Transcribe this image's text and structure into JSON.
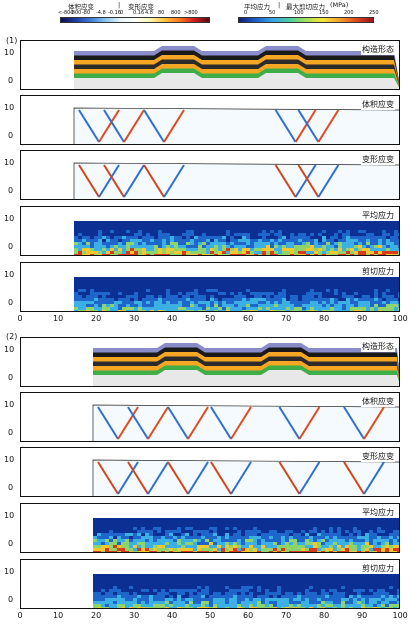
{
  "legend": {
    "left_title": "体积应变",
    "separator": "|",
    "mid_title": "变形应变",
    "right_title1": "平均应力",
    "right_sep": "|",
    "right_title2": "最大剪切应力",
    "unit": "(MPa)",
    "left_scale": [
      "<-800",
      "-800",
      "-80",
      "-4.8",
      "-0.16",
      "0",
      "0.16",
      "4.8",
      "80",
      "800",
      ">800"
    ],
    "right_scale": [
      "0",
      "50",
      "100",
      "150",
      "200",
      "250"
    ]
  },
  "sections": [
    {
      "label": "(1)",
      "panels": [
        {
          "title": "构造形态",
          "yticks": [
            "10",
            "0"
          ]
        },
        {
          "title": "体积应变",
          "yticks": [
            "10",
            "0"
          ]
        },
        {
          "title": "变形应变",
          "yticks": [
            "10",
            "0"
          ]
        },
        {
          "title": "平均应力",
          "yticks": [
            "10",
            "0"
          ]
        },
        {
          "title": "剪切应力",
          "yticks": [
            "10",
            "0"
          ]
        }
      ],
      "xticks": [
        "0",
        "10",
        "20",
        "30",
        "40",
        "50",
        "60",
        "70",
        "80",
        "90",
        "100"
      ]
    },
    {
      "label": "(2)",
      "panels": [
        {
          "title": "构造形态",
          "yticks": [
            "10",
            "0"
          ]
        },
        {
          "title": "体积应变",
          "yticks": [
            "10",
            "0"
          ]
        },
        {
          "title": "变形应变",
          "yticks": [
            "10",
            "0"
          ]
        },
        {
          "title": "平均应力",
          "yticks": [
            "10",
            "0"
          ]
        },
        {
          "title": "剪切应力",
          "yticks": [
            "10",
            "0"
          ]
        }
      ],
      "xticks": [
        "0",
        "10",
        "20",
        "30",
        "40",
        "50",
        "60",
        "70",
        "80",
        "90",
        "100"
      ]
    }
  ],
  "colors": {
    "strain_neg": "#1b3a8f",
    "strain_pos": "#b9151c",
    "stress_low": "#0a2a8c",
    "stress_high": "#c0161b"
  }
}
